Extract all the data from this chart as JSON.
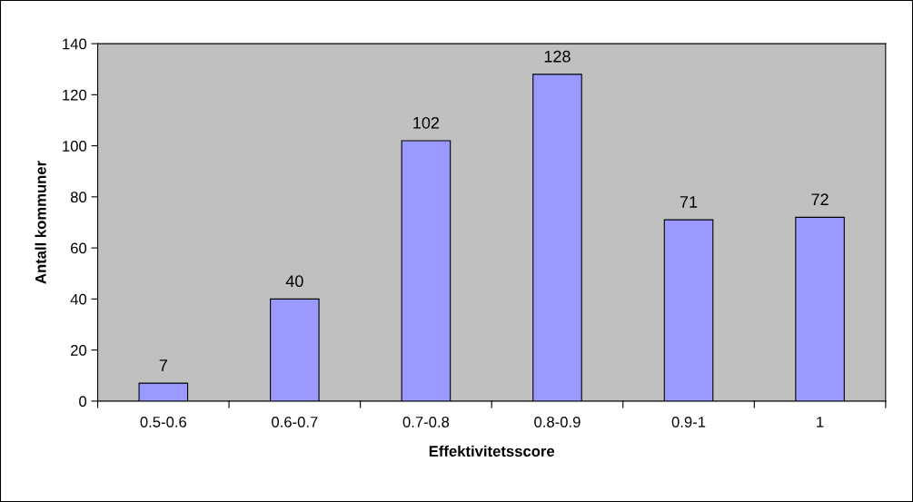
{
  "chart_data": {
    "type": "bar",
    "xlabel": "Effektivitetsscore",
    "ylabel": "Antall kommuner",
    "categories": [
      "0.5-0.6",
      "0.6-0.7",
      "0.7-0.8",
      "0.8-0.9",
      "0.9-1",
      "1"
    ],
    "values": [
      7,
      40,
      102,
      128,
      71,
      72
    ],
    "color": "#9999ff",
    "ylim": [
      0,
      140
    ],
    "yticks": [
      0,
      20,
      40,
      60,
      80,
      100,
      120,
      140
    ],
    "data_labels": true,
    "grid": false,
    "legend": false
  }
}
